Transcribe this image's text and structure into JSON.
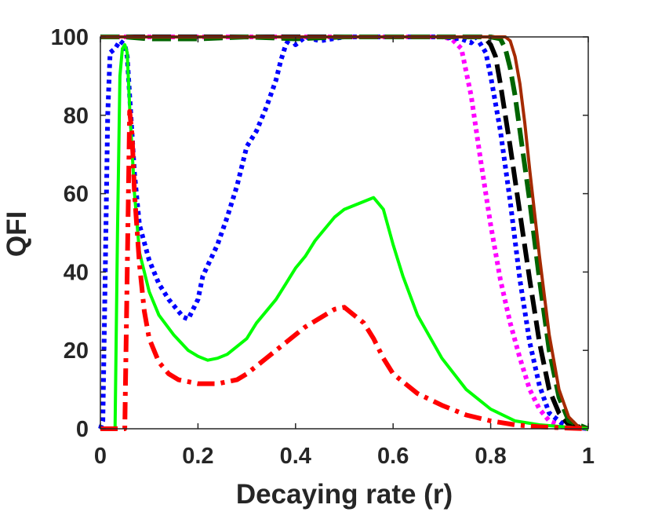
{
  "chart_data": {
    "type": "line",
    "title": "",
    "xlabel": "Decaying rate (r)",
    "ylabel": "QFI",
    "xlim": [
      0,
      1
    ],
    "ylim": [
      0,
      100
    ],
    "xticks": [
      0,
      0.2,
      0.4,
      0.6,
      0.8,
      1
    ],
    "xtick_labels": [
      "0",
      "0.2",
      "0.4",
      "0.6",
      "0.8",
      "1"
    ],
    "yticks": [
      0,
      20,
      40,
      60,
      80,
      100
    ],
    "ytick_labels": [
      "0",
      "20",
      "40",
      "60",
      "80",
      "100"
    ],
    "grid": false,
    "legend": "none",
    "series": [
      {
        "name": "magenta-dotted",
        "color": "#ff00ff",
        "style": "dotted",
        "x": [
          0,
          0.02,
          0.1,
          0.2,
          0.3,
          0.4,
          0.5,
          0.6,
          0.7,
          0.72,
          0.74,
          0.76,
          0.78,
          0.8,
          0.82,
          0.84,
          0.86,
          0.88,
          0.9,
          0.92,
          0.95,
          1.0
        ],
        "y": [
          100,
          100,
          100,
          100,
          100,
          100,
          100,
          100,
          100,
          99.5,
          97,
          85,
          68,
          52,
          38,
          27,
          18,
          10,
          5,
          2,
          0.5,
          0
        ]
      },
      {
        "name": "blue-dotted",
        "color": "#0000ff",
        "style": "dotted",
        "x": [
          0,
          0.005,
          0.01,
          0.015,
          0.02,
          0.03,
          0.04,
          0.05,
          0.055,
          0.06,
          0.07,
          0.08,
          0.1,
          0.12,
          0.14,
          0.16,
          0.17,
          0.18,
          0.2,
          0.21,
          0.24,
          0.26,
          0.28,
          0.3,
          0.32,
          0.34,
          0.36,
          0.37,
          0.38,
          0.39,
          0.4,
          0.42,
          0.45,
          0.5,
          0.6,
          0.7,
          0.74,
          0.76,
          0.77,
          0.78,
          0.79,
          0.8,
          0.82,
          0.84,
          0.86,
          0.88,
          0.9,
          0.92,
          0.95,
          1.0
        ],
        "y": [
          0,
          2,
          40,
          80,
          96,
          97,
          99,
          98,
          95,
          85,
          65,
          52,
          43,
          37,
          33,
          30,
          28.5,
          28,
          33,
          39,
          47,
          54,
          62,
          72,
          76,
          82,
          89,
          94,
          98,
          100,
          98,
          100,
          99,
          100,
          100,
          100,
          99.5,
          98.5,
          100,
          98,
          96,
          90,
          76,
          58,
          38,
          22,
          11,
          4,
          1,
          0
        ]
      },
      {
        "name": "black-dashed",
        "color": "#000000",
        "style": "dashed",
        "x": [
          0,
          0.05,
          0.1,
          0.2,
          0.3,
          0.4,
          0.5,
          0.6,
          0.7,
          0.75,
          0.78,
          0.79,
          0.8,
          0.81,
          0.82,
          0.84,
          0.86,
          0.88,
          0.9,
          0.92,
          0.94,
          0.96,
          1.0
        ],
        "y": [
          100,
          100,
          100,
          100,
          100,
          100,
          100,
          100,
          100,
          100,
          100,
          99.5,
          98,
          95,
          88,
          72,
          55,
          38,
          22,
          10,
          4,
          1,
          0
        ]
      },
      {
        "name": "green-dashed",
        "color": "#006400",
        "style": "dashed",
        "x": [
          0,
          0.05,
          0.1,
          0.2,
          0.3,
          0.4,
          0.5,
          0.6,
          0.7,
          0.75,
          0.8,
          0.82,
          0.83,
          0.84,
          0.85,
          0.86,
          0.88,
          0.9,
          0.92,
          0.94,
          0.96,
          1.0
        ],
        "y": [
          100,
          100,
          99.5,
          99.5,
          100,
          99.5,
          100,
          100,
          100,
          100,
          100,
          99.5,
          97,
          92,
          85,
          76,
          58,
          38,
          20,
          8,
          2,
          0
        ]
      },
      {
        "name": "brown-solid",
        "color": "#a52a00",
        "style": "solid",
        "x": [
          0,
          0.05,
          0.1,
          0.2,
          0.3,
          0.4,
          0.5,
          0.6,
          0.7,
          0.8,
          0.83,
          0.84,
          0.85,
          0.86,
          0.87,
          0.88,
          0.9,
          0.92,
          0.94,
          0.96,
          0.98,
          1.0
        ],
        "y": [
          100,
          100,
          100,
          100,
          100,
          100,
          100,
          100,
          100,
          100,
          100,
          99,
          95,
          88,
          78,
          66,
          44,
          24,
          10,
          3,
          0.5,
          0
        ]
      },
      {
        "name": "green-solid",
        "color": "#00ff00",
        "style": "solid",
        "x": [
          0,
          0.03,
          0.035,
          0.04,
          0.045,
          0.05,
          0.055,
          0.06,
          0.07,
          0.08,
          0.1,
          0.12,
          0.15,
          0.18,
          0.2,
          0.22,
          0.24,
          0.26,
          0.28,
          0.3,
          0.32,
          0.34,
          0.36,
          0.38,
          0.4,
          0.42,
          0.44,
          0.46,
          0.48,
          0.5,
          0.52,
          0.54,
          0.56,
          0.58,
          0.6,
          0.62,
          0.65,
          0.7,
          0.75,
          0.8,
          0.85,
          0.9,
          0.95,
          1.0
        ],
        "y": [
          0,
          0,
          50,
          90,
          97,
          98,
          96,
          82,
          60,
          45,
          35,
          29,
          24,
          20,
          18.5,
          17.5,
          18,
          19,
          21,
          23,
          27,
          30,
          33,
          37,
          41,
          44,
          48,
          51,
          54,
          56,
          57,
          58,
          59,
          56,
          47,
          39,
          29,
          18,
          10,
          5,
          2,
          1,
          0.5,
          0
        ]
      },
      {
        "name": "red-dashdot",
        "color": "#ff0000",
        "style": "dashdot",
        "x": [
          0,
          0.05,
          0.055,
          0.06,
          0.065,
          0.07,
          0.08,
          0.09,
          0.1,
          0.12,
          0.14,
          0.16,
          0.18,
          0.2,
          0.22,
          0.24,
          0.26,
          0.28,
          0.3,
          0.32,
          0.34,
          0.36,
          0.38,
          0.4,
          0.42,
          0.44,
          0.46,
          0.48,
          0.5,
          0.52,
          0.54,
          0.56,
          0.58,
          0.6,
          0.65,
          0.7,
          0.75,
          0.8,
          0.85,
          0.9,
          0.95,
          1.0
        ],
        "y": [
          0,
          0,
          40,
          81,
          75,
          60,
          42,
          30,
          23,
          17,
          14,
          12.5,
          12,
          11.5,
          11.5,
          11.5,
          12,
          12.5,
          14,
          16,
          18,
          20,
          22,
          24,
          26,
          27.5,
          29,
          30.5,
          31,
          29,
          27,
          23,
          18,
          14,
          9,
          6,
          3.5,
          2,
          1,
          0.5,
          0.2,
          0
        ]
      }
    ]
  }
}
